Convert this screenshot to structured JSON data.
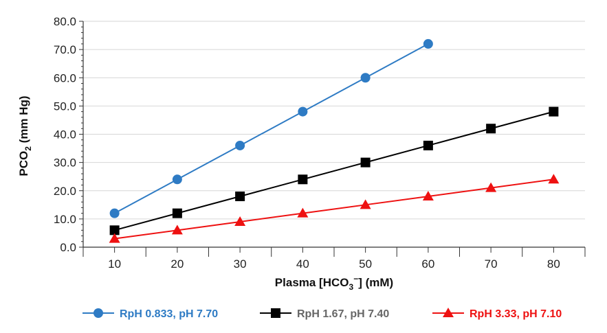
{
  "chart_data": {
    "type": "line",
    "title": "",
    "xlabel": {
      "main": "Plasma [HCO",
      "sub": "3",
      "sup": "−",
      "rest": "] (mM)"
    },
    "ylabel": {
      "main": "PCO",
      "sub": "2",
      "rest": " (mm Hg)"
    },
    "x_ticks": [
      "10",
      "20",
      "30",
      "40",
      "50",
      "60",
      "70",
      "80"
    ],
    "y_ticks": [
      "0.0",
      "10.0",
      "20.0",
      "30.0",
      "40.0",
      "50.0",
      "60.0",
      "70.0",
      "80.0"
    ],
    "xlim": [
      5,
      85
    ],
    "ylim": [
      0,
      80
    ],
    "y_grid": true,
    "legend_position": "bottom",
    "series": [
      {
        "name": "RpH 0.833, pH 7.70",
        "color": "#2e7bc4",
        "marker": "circle",
        "x": [
          10,
          20,
          30,
          40,
          50,
          60
        ],
        "y": [
          12,
          24,
          36,
          48,
          60,
          72
        ]
      },
      {
        "name": "RpH 1.67, pH 7.40",
        "color": "#000000",
        "marker": "square",
        "x": [
          10,
          20,
          30,
          40,
          50,
          60,
          70,
          80
        ],
        "y": [
          6,
          12,
          18,
          24,
          30,
          36,
          42,
          48
        ]
      },
      {
        "name": "RpH 3.33, pH 7.10",
        "color": "#ee1111",
        "marker": "triangle",
        "x": [
          10,
          20,
          30,
          40,
          50,
          60,
          70,
          80
        ],
        "y": [
          3,
          6,
          9,
          12,
          15,
          18,
          21,
          24
        ]
      }
    ],
    "legend_text_colors": [
      "#2e7bc4",
      "#666666",
      "#ee1111"
    ]
  }
}
